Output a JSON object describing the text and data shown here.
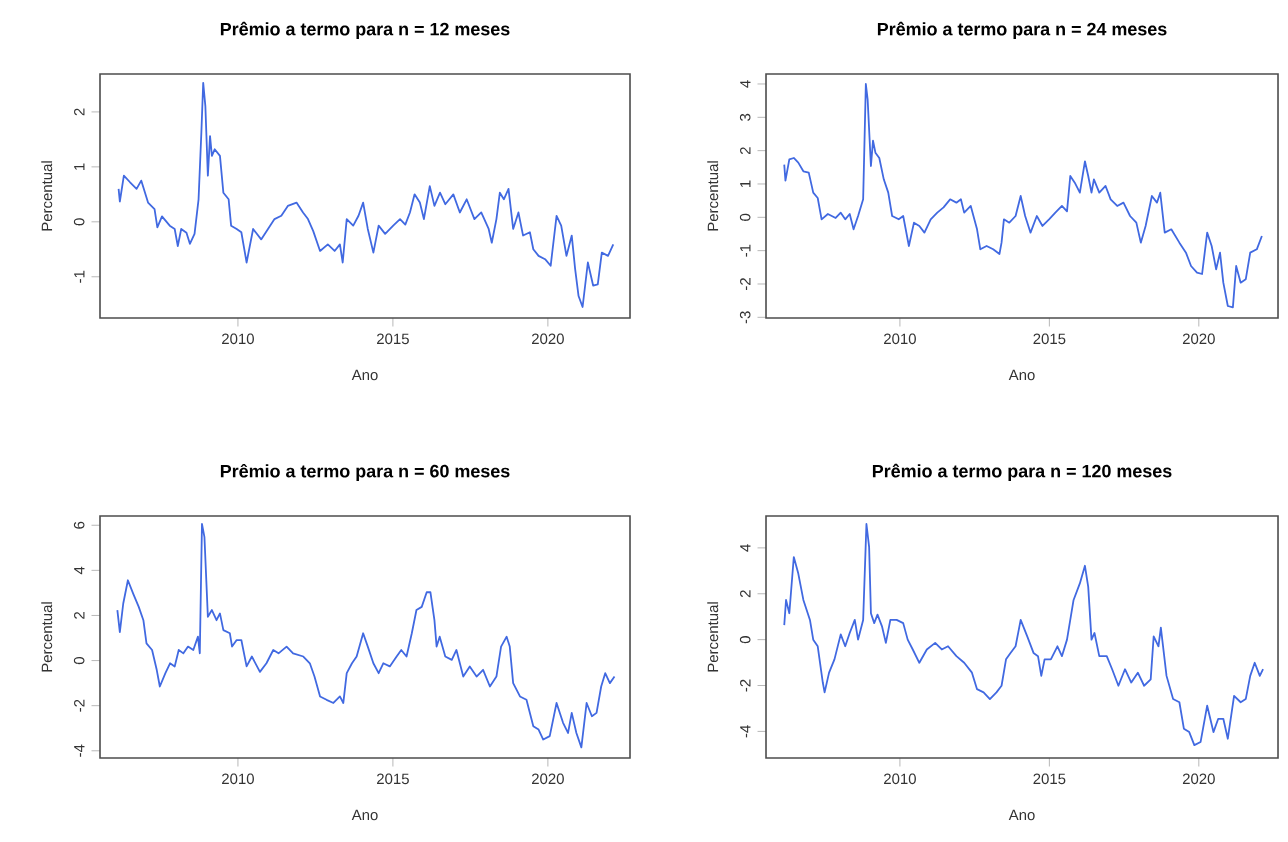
{
  "chart_data": [
    {
      "type": "line",
      "title": "Prêmio a termo para n = 12 meses",
      "xlabel": "Ano",
      "ylabel": "Percentual",
      "xlim": [
        2005.55,
        2022.65
      ],
      "ylim": [
        -1.75,
        2.69
      ],
      "xticks": [
        2010,
        2015,
        2020
      ],
      "yticks": [
        -1,
        0,
        1,
        2
      ],
      "grid": false,
      "x": [
        2006.15,
        2006.19,
        2006.32,
        2006.52,
        2006.73,
        2006.88,
        2007.1,
        2007.31,
        2007.4,
        2007.55,
        2007.8,
        2007.96,
        2008.06,
        2008.17,
        2008.34,
        2008.45,
        2008.6,
        2008.73,
        2008.82,
        2008.88,
        2008.95,
        2009.03,
        2009.1,
        2009.16,
        2009.25,
        2009.42,
        2009.53,
        2009.7,
        2009.78,
        2009.96,
        2010.11,
        2010.28,
        2010.49,
        2010.75,
        2010.97,
        2011.18,
        2011.4,
        2011.61,
        2011.89,
        2012.1,
        2012.26,
        2012.43,
        2012.65,
        2012.9,
        2013.12,
        2013.29,
        2013.38,
        2013.51,
        2013.72,
        2013.89,
        2014.04,
        2014.19,
        2014.37,
        2014.54,
        2014.75,
        2015.01,
        2015.23,
        2015.4,
        2015.55,
        2015.7,
        2015.87,
        2016.0,
        2016.19,
        2016.34,
        2016.52,
        2016.69,
        2016.95,
        2017.16,
        2017.38,
        2017.63,
        2017.85,
        2018.09,
        2018.19,
        2018.34,
        2018.45,
        2018.58,
        2018.73,
        2018.88,
        2019.05,
        2019.2,
        2019.42,
        2019.53,
        2019.7,
        2019.91,
        2020.09,
        2020.28,
        2020.43,
        2020.6,
        2020.77,
        2020.88,
        2020.99,
        2021.12,
        2021.29,
        2021.46,
        2021.61,
        2021.74,
        2021.94,
        2022.11
      ],
      "series": [
        {
          "color": "#4169e1",
          "values": [
            0.6,
            0.37,
            0.84,
            0.72,
            0.6,
            0.75,
            0.35,
            0.23,
            -0.1,
            0.1,
            -0.07,
            -0.13,
            -0.44,
            -0.13,
            -0.2,
            -0.4,
            -0.22,
            0.41,
            1.62,
            2.53,
            2.1,
            0.84,
            1.56,
            1.2,
            1.32,
            1.2,
            0.53,
            0.41,
            -0.07,
            -0.13,
            -0.19,
            -0.74,
            -0.13,
            -0.32,
            -0.13,
            0.05,
            0.11,
            0.29,
            0.35,
            0.17,
            0.05,
            -0.17,
            -0.53,
            -0.41,
            -0.53,
            -0.41,
            -0.74,
            0.05,
            -0.07,
            0.11,
            0.35,
            -0.13,
            -0.56,
            -0.07,
            -0.22,
            -0.07,
            0.05,
            -0.05,
            0.17,
            0.5,
            0.35,
            0.05,
            0.65,
            0.29,
            0.53,
            0.32,
            0.5,
            0.17,
            0.41,
            0.05,
            0.17,
            -0.13,
            -0.38,
            0.05,
            0.53,
            0.41,
            0.6,
            -0.13,
            0.17,
            -0.25,
            -0.19,
            -0.5,
            -0.62,
            -0.68,
            -0.8,
            0.11,
            -0.07,
            -0.62,
            -0.25,
            -0.86,
            -1.35,
            -1.55,
            -0.74,
            -1.16,
            -1.14,
            -0.56,
            -0.62,
            -0.41
          ]
        }
      ]
    },
    {
      "type": "line",
      "title": "Prêmio a termo para n = 24 meses",
      "xlabel": "Ano",
      "ylabel": "Percentual",
      "xlim": [
        2005.52,
        2022.65
      ],
      "ylim": [
        -3.02,
        4.3
      ],
      "xticks": [
        2010,
        2015,
        2020
      ],
      "yticks": [
        -3,
        -2,
        -1,
        0,
        1,
        2,
        3,
        4
      ],
      "grid": false,
      "x": [
        2006.13,
        2006.17,
        2006.3,
        2006.45,
        2006.6,
        2006.77,
        2006.95,
        2007.1,
        2007.25,
        2007.38,
        2007.59,
        2007.85,
        2008.02,
        2008.17,
        2008.32,
        2008.45,
        2008.6,
        2008.77,
        2008.86,
        2008.92,
        2009.03,
        2009.1,
        2009.18,
        2009.31,
        2009.46,
        2009.61,
        2009.74,
        2009.96,
        2010.11,
        2010.3,
        2010.47,
        2010.65,
        2010.82,
        2011.03,
        2011.25,
        2011.46,
        2011.68,
        2011.89,
        2012.04,
        2012.15,
        2012.37,
        2012.58,
        2012.69,
        2012.9,
        2013.12,
        2013.33,
        2013.4,
        2013.48,
        2013.66,
        2013.87,
        2014.04,
        2014.19,
        2014.37,
        2014.58,
        2014.77,
        2014.99,
        2015.2,
        2015.42,
        2015.59,
        2015.7,
        2015.85,
        2016.02,
        2016.19,
        2016.3,
        2016.41,
        2016.49,
        2016.67,
        2016.88,
        2017.05,
        2017.27,
        2017.48,
        2017.7,
        2017.91,
        2018.06,
        2018.22,
        2018.43,
        2018.6,
        2018.71,
        2018.86,
        2019.08,
        2019.35,
        2019.57,
        2019.74,
        2019.94,
        2020.11,
        2020.28,
        2020.43,
        2020.58,
        2020.71,
        2020.82,
        2020.97,
        2021.14,
        2021.25,
        2021.4,
        2021.57,
        2021.72,
        2021.94,
        2022.11
      ],
      "series": [
        {
          "color": "#4169e1",
          "values": [
            1.58,
            1.1,
            1.74,
            1.78,
            1.64,
            1.38,
            1.34,
            0.74,
            0.58,
            -0.06,
            0.1,
            -0.02,
            0.14,
            -0.06,
            0.1,
            -0.36,
            0.04,
            0.54,
            4.0,
            3.54,
            1.54,
            2.3,
            1.94,
            1.78,
            1.14,
            0.74,
            0.04,
            -0.06,
            0.04,
            -0.86,
            -0.16,
            -0.26,
            -0.46,
            -0.06,
            0.14,
            0.3,
            0.54,
            0.44,
            0.54,
            0.14,
            0.34,
            -0.36,
            -0.96,
            -0.86,
            -0.96,
            -1.1,
            -0.76,
            -0.06,
            -0.16,
            0.04,
            0.64,
            0.04,
            -0.46,
            0.04,
            -0.26,
            -0.06,
            0.14,
            0.34,
            0.18,
            1.24,
            1.04,
            0.74,
            1.68,
            1.24,
            0.74,
            1.14,
            0.74,
            0.94,
            0.54,
            0.34,
            0.44,
            0.04,
            -0.16,
            -0.76,
            -0.26,
            0.64,
            0.44,
            0.74,
            -0.46,
            -0.36,
            -0.76,
            -1.06,
            -1.46,
            -1.66,
            -1.7,
            -0.46,
            -0.86,
            -1.56,
            -1.06,
            -1.96,
            -2.66,
            -2.7,
            -1.46,
            -1.96,
            -1.86,
            -1.06,
            -0.96,
            -0.56
          ]
        }
      ]
    },
    {
      "type": "line",
      "title": "Prêmio a termo para n = 60 meses",
      "xlabel": "Ano",
      "ylabel": "Percentual",
      "xlim": [
        2005.55,
        2022.65
      ],
      "ylim": [
        -4.32,
        6.41
      ],
      "xticks": [
        2010,
        2015,
        2020
      ],
      "yticks": [
        -4,
        -2,
        0,
        2,
        4,
        6
      ],
      "grid": false,
      "x": [
        2006.11,
        2006.19,
        2006.3,
        2006.45,
        2006.62,
        2006.8,
        2006.95,
        2007.05,
        2007.23,
        2007.38,
        2007.48,
        2007.66,
        2007.81,
        2007.96,
        2008.09,
        2008.24,
        2008.39,
        2008.56,
        2008.71,
        2008.77,
        2008.84,
        2008.92,
        2009.03,
        2009.16,
        2009.31,
        2009.42,
        2009.53,
        2009.74,
        2009.81,
        2009.96,
        2010.11,
        2010.28,
        2010.45,
        2010.71,
        2010.92,
        2011.14,
        2011.31,
        2011.57,
        2011.78,
        2012.11,
        2012.32,
        2012.47,
        2012.65,
        2012.86,
        2013.08,
        2013.29,
        2013.4,
        2013.51,
        2013.68,
        2013.83,
        2014.04,
        2014.19,
        2014.37,
        2014.54,
        2014.69,
        2014.9,
        2015.12,
        2015.27,
        2015.44,
        2015.61,
        2015.76,
        2015.93,
        2016.09,
        2016.21,
        2016.34,
        2016.41,
        2016.51,
        2016.69,
        2016.9,
        2017.05,
        2017.27,
        2017.48,
        2017.7,
        2017.91,
        2018.13,
        2018.34,
        2018.49,
        2018.67,
        2018.77,
        2018.88,
        2019.1,
        2019.31,
        2019.53,
        2019.7,
        2019.85,
        2020.06,
        2020.28,
        2020.49,
        2020.65,
        2020.77,
        2020.92,
        2021.08,
        2021.25,
        2021.42,
        2021.57,
        2021.72,
        2021.85,
        2022.0,
        2022.15
      ],
      "series": [
        {
          "color": "#4169e1",
          "values": [
            2.24,
            1.26,
            2.53,
            3.56,
            2.97,
            2.38,
            1.79,
            0.76,
            0.47,
            -0.41,
            -1.15,
            -0.56,
            -0.12,
            -0.26,
            0.47,
            0.32,
            0.62,
            0.47,
            1.06,
            0.32,
            6.06,
            5.47,
            1.94,
            2.24,
            1.79,
            2.09,
            1.35,
            1.21,
            0.62,
            0.91,
            0.91,
            -0.26,
            0.18,
            -0.5,
            -0.12,
            0.47,
            0.32,
            0.62,
            0.32,
            0.18,
            -0.12,
            -0.71,
            -1.59,
            -1.74,
            -1.88,
            -1.59,
            -1.88,
            -0.56,
            -0.12,
            0.18,
            1.21,
            0.62,
            -0.12,
            -0.56,
            -0.12,
            -0.26,
            0.18,
            0.47,
            0.18,
            1.21,
            2.24,
            2.38,
            3.03,
            3.03,
            1.79,
            0.62,
            1.06,
            0.18,
            0.03,
            0.47,
            -0.71,
            -0.26,
            -0.71,
            -0.41,
            -1.15,
            -0.71,
            0.62,
            1.06,
            0.62,
            -1.0,
            -1.59,
            -1.74,
            -2.91,
            -3.06,
            -3.5,
            -3.35,
            -1.88,
            -2.76,
            -3.21,
            -2.32,
            -3.21,
            -3.85,
            -1.88,
            -2.47,
            -2.32,
            -1.15,
            -0.56,
            -1.0,
            -0.71
          ]
        }
      ]
    },
    {
      "type": "line",
      "title": "Prêmio a termo para n = 120 meses",
      "xlabel": "Ano",
      "ylabel": "Percentual",
      "xlim": [
        2005.52,
        2022.65
      ],
      "ylim": [
        -5.16,
        5.39
      ],
      "xticks": [
        2010,
        2015,
        2020
      ],
      "yticks": [
        -4,
        -2,
        0,
        2,
        4
      ],
      "grid": false,
      "x": [
        2006.13,
        2006.19,
        2006.3,
        2006.45,
        2006.6,
        2006.77,
        2006.99,
        2007.1,
        2007.25,
        2007.42,
        2007.48,
        2007.63,
        2007.81,
        2008.02,
        2008.17,
        2008.32,
        2008.49,
        2008.6,
        2008.77,
        2008.88,
        2008.97,
        2009.03,
        2009.14,
        2009.25,
        2009.4,
        2009.53,
        2009.68,
        2009.89,
        2010.11,
        2010.26,
        2010.43,
        2010.65,
        2010.9,
        2011.18,
        2011.4,
        2011.61,
        2011.89,
        2012.15,
        2012.41,
        2012.58,
        2012.8,
        2013.01,
        2013.23,
        2013.4,
        2013.55,
        2013.7,
        2013.87,
        2014.04,
        2014.26,
        2014.47,
        2014.62,
        2014.73,
        2014.84,
        2015.05,
        2015.27,
        2015.42,
        2015.59,
        2015.81,
        2016.02,
        2016.19,
        2016.3,
        2016.41,
        2016.51,
        2016.67,
        2016.92,
        2017.1,
        2017.31,
        2017.53,
        2017.74,
        2017.96,
        2018.17,
        2018.39,
        2018.49,
        2018.65,
        2018.73,
        2018.92,
        2019.14,
        2019.35,
        2019.5,
        2019.68,
        2019.85,
        2020.06,
        2020.28,
        2020.49,
        2020.65,
        2020.82,
        2020.97,
        2021.18,
        2021.4,
        2021.57,
        2021.72,
        2021.87,
        2022.04,
        2022.15
      ],
      "series": [
        {
          "color": "#4169e1",
          "values": [
            0.63,
            1.73,
            1.15,
            3.6,
            2.88,
            1.73,
            0.86,
            0.0,
            -0.29,
            -1.87,
            -2.3,
            -1.44,
            -0.86,
            0.23,
            -0.29,
            0.29,
            0.86,
            0.0,
            0.86,
            5.04,
            4.03,
            1.15,
            0.72,
            1.09,
            0.58,
            -0.14,
            0.86,
            0.86,
            0.72,
            0.0,
            -0.43,
            -1.01,
            -0.43,
            -0.14,
            -0.43,
            -0.29,
            -0.72,
            -1.01,
            -1.44,
            -2.16,
            -2.3,
            -2.59,
            -2.3,
            -2.01,
            -0.86,
            -0.58,
            -0.29,
            0.86,
            0.14,
            -0.58,
            -0.72,
            -1.58,
            -0.86,
            -0.86,
            -0.29,
            -0.72,
            0.0,
            1.73,
            2.45,
            3.22,
            2.3,
            0.0,
            0.29,
            -0.72,
            -0.72,
            -1.29,
            -2.01,
            -1.29,
            -1.87,
            -1.44,
            -2.01,
            -1.73,
            0.14,
            -0.29,
            0.52,
            -1.58,
            -2.59,
            -2.73,
            -3.88,
            -4.03,
            -4.6,
            -4.46,
            -2.88,
            -4.03,
            -3.45,
            -3.45,
            -4.32,
            -2.45,
            -2.73,
            -2.59,
            -1.58,
            -1.01,
            -1.58,
            -1.29
          ]
        }
      ]
    }
  ]
}
